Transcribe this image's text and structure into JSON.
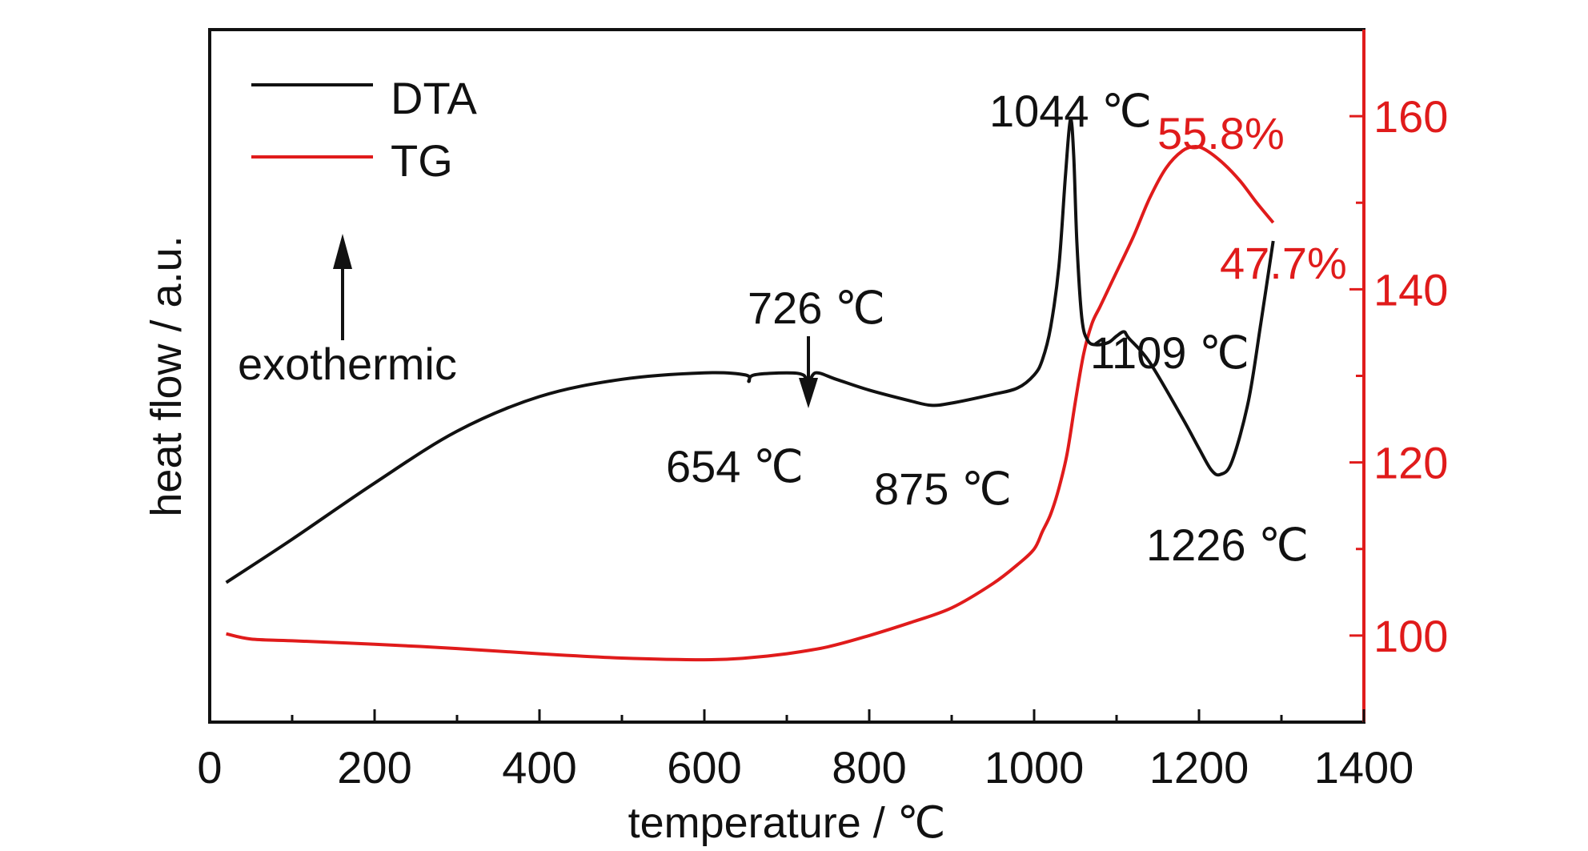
{
  "chart_data": {
    "type": "line",
    "xlabel": "temperature / ℃",
    "ylabel": "heat flow / a.u.",
    "xlim": [
      0,
      1400
    ],
    "x_ticks": [
      "0",
      "200",
      "400",
      "600",
      "800",
      "1000",
      "1200",
      "1400"
    ],
    "y2lim": [
      90,
      170
    ],
    "y2_ticks": [
      "100",
      "120",
      "140",
      "160"
    ],
    "legend": {
      "placement": "top-left",
      "entries": [
        "DTA",
        "TG"
      ]
    },
    "series": [
      {
        "name": "DTA",
        "color": "#111111",
        "axis": "left",
        "x": [
          20,
          100,
          200,
          300,
          400,
          500,
          600,
          650,
          654,
          660,
          700,
          720,
          726,
          735,
          760,
          800,
          850,
          875,
          900,
          950,
          980,
          1000,
          1010,
          1020,
          1030,
          1038,
          1044,
          1048,
          1052,
          1058,
          1065,
          1075,
          1090,
          1100,
          1109,
          1115,
          1140,
          1180,
          1200,
          1215,
          1226,
          1240,
          1260,
          1275,
          1290
        ],
        "values": [
          0.06,
          0.16,
          0.29,
          0.41,
          0.49,
          0.53,
          0.545,
          0.54,
          0.525,
          0.54,
          0.545,
          0.54,
          0.52,
          0.545,
          0.53,
          0.505,
          0.48,
          0.47,
          0.475,
          0.495,
          0.51,
          0.54,
          0.575,
          0.65,
          0.79,
          1.0,
          1.13,
          1.05,
          0.84,
          0.67,
          0.62,
          0.61,
          0.615,
          0.63,
          0.64,
          0.625,
          0.57,
          0.44,
          0.37,
          0.32,
          0.31,
          0.34,
          0.48,
          0.66,
          0.85
        ]
      },
      {
        "name": "TG",
        "color": "#e01b1b",
        "axis": "right",
        "x": [
          20,
          50,
          100,
          200,
          300,
          400,
          500,
          600,
          650,
          700,
          750,
          800,
          850,
          900,
          950,
          980,
          1000,
          1010,
          1020,
          1030,
          1040,
          1050,
          1060,
          1070,
          1080,
          1090,
          1100,
          1120,
          1140,
          1160,
          1180,
          1196,
          1210,
          1230,
          1250,
          1270,
          1290
        ],
        "values": [
          100.2,
          99.6,
          99.4,
          99.0,
          98.5,
          97.9,
          97.4,
          97.2,
          97.4,
          97.9,
          98.7,
          100.0,
          101.5,
          103.2,
          106.0,
          108.2,
          110.0,
          112.0,
          114.0,
          117.0,
          121.0,
          127.0,
          132.5,
          136.0,
          138.0,
          140.0,
          142.0,
          146.0,
          150.5,
          154.0,
          156.0,
          156.5,
          156.0,
          154.5,
          152.5,
          150.0,
          147.7
        ]
      }
    ],
    "annotations": [
      {
        "text": "1044 ℃",
        "x": 1044,
        "color": "#111111"
      },
      {
        "text": "726 ℃",
        "x": 726,
        "color": "#111111"
      },
      {
        "text": "654 ℃",
        "x": 654,
        "color": "#111111"
      },
      {
        "text": "875 ℃",
        "x": 875,
        "color": "#111111"
      },
      {
        "text": "1109 ℃",
        "x": 1109,
        "color": "#111111"
      },
      {
        "text": "1226 ℃",
        "x": 1226,
        "color": "#111111"
      },
      {
        "text": "55.8%",
        "x": 1196,
        "color": "#e01b1b"
      },
      {
        "text": "47.7%",
        "x": 1290,
        "color": "#e01b1b"
      }
    ],
    "exothermic_label": "exothermic",
    "grid": false
  }
}
